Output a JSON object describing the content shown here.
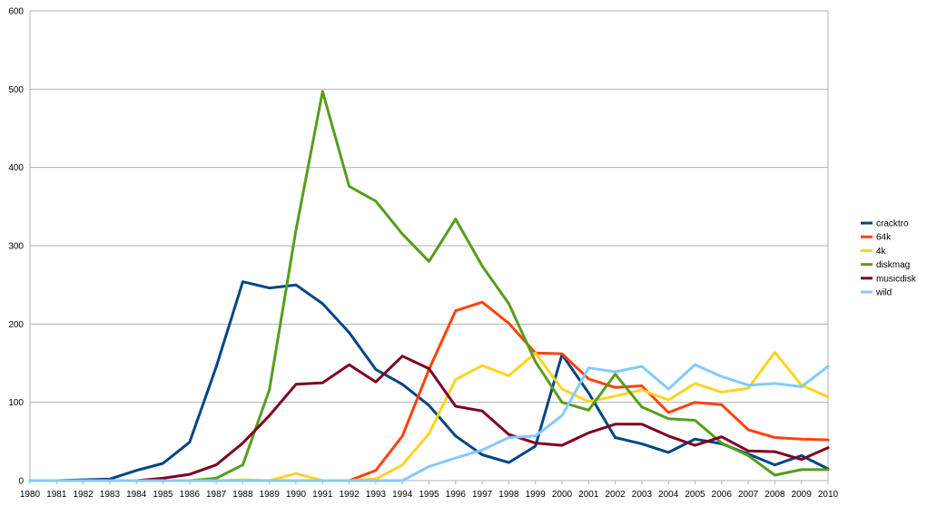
{
  "chart_data": {
    "type": "line",
    "title": "",
    "xlabel": "",
    "ylabel": "",
    "ylim": [
      0,
      600
    ],
    "yticks": [
      0,
      100,
      200,
      300,
      400,
      500,
      600
    ],
    "grid": true,
    "legend": "right",
    "x": [
      1980,
      1981,
      1982,
      1983,
      1984,
      1985,
      1986,
      1987,
      1988,
      1989,
      1990,
      1991,
      1992,
      1993,
      1994,
      1995,
      1996,
      1997,
      1998,
      1999,
      2000,
      2001,
      2002,
      2003,
      2004,
      2005,
      2006,
      2007,
      2008,
      2009,
      2010
    ],
    "series": [
      {
        "name": "cracktro",
        "color": "#004586",
        "values": [
          0,
          0,
          1,
          2,
          13,
          22,
          49,
          145,
          254,
          246,
          250,
          226,
          189,
          142,
          123,
          96,
          57,
          33,
          23,
          44,
          161,
          112,
          55,
          47,
          36,
          53,
          47,
          34,
          20,
          32,
          15
        ]
      },
      {
        "name": "64k",
        "color": "#ff420e",
        "values": [
          0,
          0,
          0,
          0,
          0,
          0,
          0,
          0,
          0,
          0,
          0,
          0,
          0,
          13,
          57,
          142,
          217,
          228,
          201,
          163,
          162,
          130,
          119,
          121,
          87,
          100,
          97,
          65,
          55,
          53,
          52
        ]
      },
      {
        "name": "4k",
        "color": "#ffd320",
        "values": [
          0,
          0,
          0,
          0,
          0,
          0,
          0,
          0,
          1,
          0,
          9,
          0,
          0,
          2,
          20,
          60,
          129,
          147,
          134,
          163,
          117,
          101,
          108,
          116,
          103,
          124,
          113,
          118,
          164,
          122,
          107
        ]
      },
      {
        "name": "diskmag",
        "color": "#579d1c",
        "values": [
          0,
          0,
          0,
          0,
          0,
          0,
          0,
          3,
          20,
          116,
          320,
          497,
          376,
          357,
          315,
          280,
          334,
          274,
          226,
          152,
          100,
          90,
          136,
          94,
          79,
          77,
          48,
          32,
          7,
          14,
          14
        ]
      },
      {
        "name": "musicdisk",
        "color": "#7e0021",
        "values": [
          0,
          0,
          0,
          0,
          0,
          3,
          8,
          20,
          48,
          83,
          123,
          125,
          148,
          126,
          159,
          143,
          95,
          89,
          59,
          48,
          45,
          61,
          72,
          72,
          57,
          45,
          56,
          38,
          37,
          27,
          42
        ]
      },
      {
        "name": "wild",
        "color": "#83caff",
        "values": [
          0,
          0,
          0,
          0,
          0,
          0,
          0,
          0,
          0,
          0,
          0,
          0,
          0,
          0,
          0,
          18,
          29,
          39,
          55,
          57,
          83,
          144,
          139,
          146,
          117,
          148,
          133,
          122,
          124,
          120,
          146
        ]
      }
    ]
  }
}
